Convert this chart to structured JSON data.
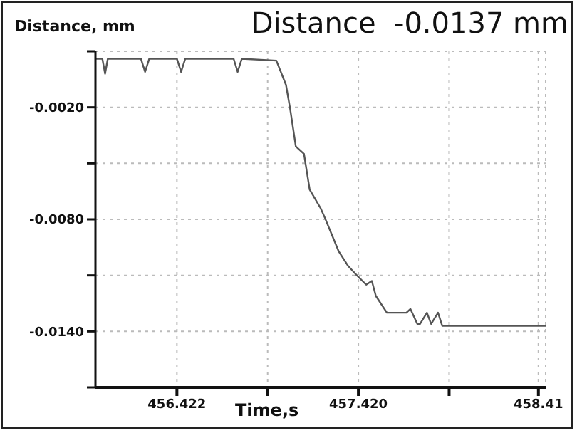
{
  "chart_data": {
    "type": "line",
    "title": "Distance  -0.0137 mm",
    "xlabel": "Time,s",
    "ylabel": "Distance, mm",
    "x": [
      455.974,
      456.012,
      456.027,
      456.042,
      456.224,
      456.247,
      456.27,
      456.422,
      456.445,
      456.468,
      456.734,
      456.756,
      456.779,
      456.969,
      457.022,
      457.045,
      457.076,
      457.121,
      457.152,
      457.212,
      457.235,
      457.311,
      457.364,
      457.402,
      457.463,
      457.494,
      457.516,
      457.577,
      457.684,
      457.706,
      457.744,
      457.759,
      457.797,
      457.82,
      457.858,
      457.881,
      458.45
    ],
    "values": [
      0.0006,
      0.0006,
      -0.0002,
      0.0006,
      0.0006,
      -0.0001,
      0.0006,
      0.0006,
      -0.0001,
      0.0006,
      0.0006,
      -0.0001,
      0.0006,
      0.0005,
      -0.0008,
      -0.0021,
      -0.0041,
      -0.0045,
      -0.0064,
      -0.0074,
      -0.0079,
      -0.0097,
      -0.0105,
      -0.0109,
      -0.0115,
      -0.0113,
      -0.0121,
      -0.013,
      -0.013,
      -0.0128,
      -0.0136,
      -0.0136,
      -0.013,
      -0.0136,
      -0.013,
      -0.0137,
      -0.0137
    ],
    "color": "#555555",
    "marker": "none",
    "line_style": "solid",
    "grid": true,
    "legend": false,
    "xlim": [
      455.974,
      458.45
    ],
    "xticks": [
      {
        "value": 456.422,
        "label": "456.422"
      },
      {
        "value": 456.921,
        "label": null
      },
      {
        "value": 457.42,
        "label": "457.420"
      },
      {
        "value": 457.919,
        "label": null
      },
      458.41
    ],
    "ylim": [
      -0.017,
      0.001
    ],
    "yticks": [
      {
        "value": 0.001,
        "label": null
      },
      {
        "value": -0.002,
        "label": "-0.0020"
      },
      {
        "value": -0.005,
        "label": null
      },
      {
        "value": -0.008,
        "label": "-0.0080"
      },
      {
        "value": -0.011,
        "label": null
      },
      {
        "value": -0.014,
        "label": "-0.0140"
      },
      {
        "value": -0.017,
        "label": null
      }
    ]
  }
}
